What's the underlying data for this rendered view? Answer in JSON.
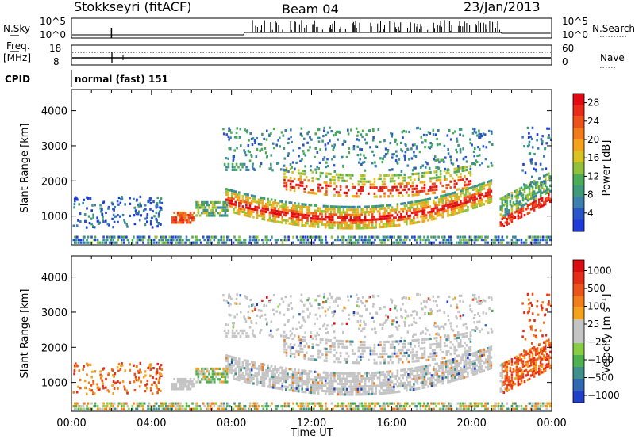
{
  "header": {
    "station": "Stokkseyri (fitACF)",
    "beam": "Beam 04",
    "date": "23/Jan/2013"
  },
  "sky_panel": {
    "left_label": "N.Sky",
    "left_ticks": [
      "10^5",
      "10^0"
    ],
    "right_label": "N.Search",
    "right_ticks": [
      "10^5",
      "10^0"
    ]
  },
  "freq_panel": {
    "left_label_1": "Freq.",
    "left_label_2": "[MHz]",
    "left_ticks": [
      "18",
      "8"
    ],
    "right_label": "Nave",
    "right_ticks": [
      "60",
      "0"
    ]
  },
  "cpid": {
    "label": "CPID",
    "value": "normal (fast) 151"
  },
  "x_axis": {
    "label": "Time UT",
    "ticks": [
      "00:00",
      "04:00",
      "08:00",
      "12:00",
      "16:00",
      "20:00",
      "00:00"
    ]
  },
  "chart_data": [
    {
      "type": "heatmap",
      "quantity": "power",
      "ylabel": "Slant Range [km]",
      "y_ticks": [
        1000,
        2000,
        3000,
        4000
      ],
      "ylim": [
        180,
        4600
      ],
      "xlim_hours": [
        0,
        24
      ],
      "colorbar": {
        "label": "Power [dB]",
        "ticks": [
          "4",
          "8",
          "12",
          "16",
          "20",
          "24",
          "28"
        ],
        "colors": [
          "#1f3ad9",
          "#2a55c8",
          "#3b7fae",
          "#3f9a7a",
          "#4cab57",
          "#8fc23a",
          "#d9c324",
          "#f4a21d",
          "#f07b1c",
          "#ec521c",
          "#e82a18",
          "#e00a10"
        ]
      }
    },
    {
      "type": "heatmap",
      "quantity": "velocity",
      "ylabel": "Slant Range [km]",
      "y_ticks": [
        1000,
        2000,
        3000,
        4000
      ],
      "ylim": [
        180,
        4600
      ],
      "xlim_hours": [
        0,
        24
      ],
      "colorbar": {
        "label": "Velocity [m s⁻¹]",
        "ticks": [
          "1000",
          "500",
          "100",
          "25",
          "−25",
          "−100",
          "−500",
          "−1000"
        ],
        "colors": [
          "#2040c8",
          "#2f68b0",
          "#3f8f8a",
          "#4fb04f",
          "#89cc46",
          "#c4c4c4",
          "#c4c4c4",
          "#f2a21c",
          "#f07e1c",
          "#ea531c",
          "#e22e18",
          "#d80e10"
        ]
      }
    }
  ]
}
